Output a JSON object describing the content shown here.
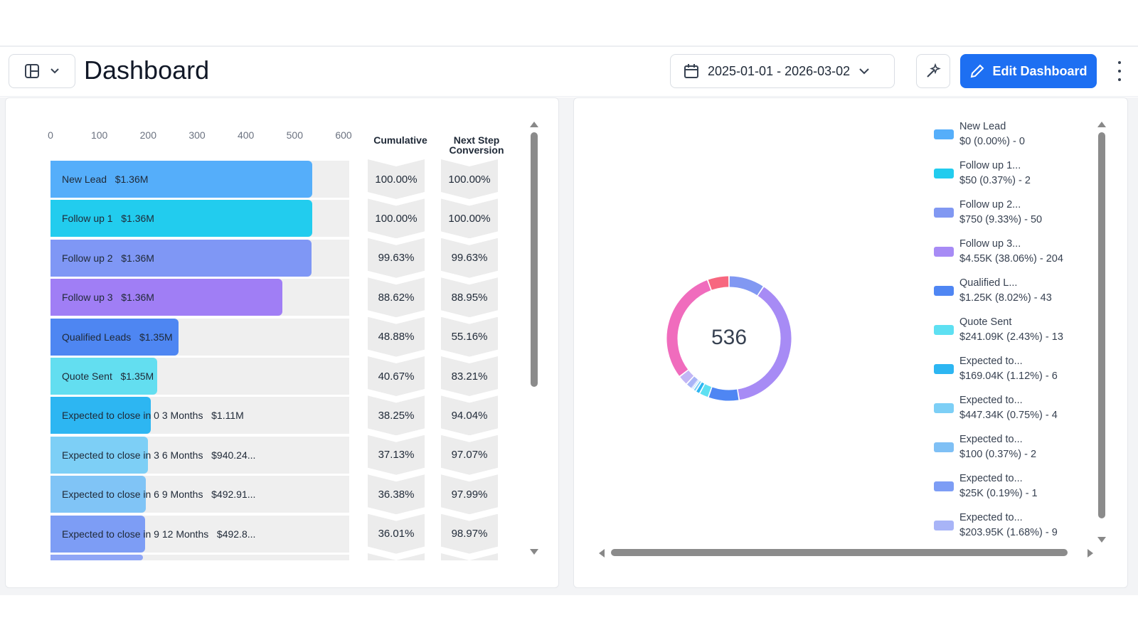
{
  "header": {
    "title": "Dashboard",
    "date_range": "2025-01-01 - 2026-03-02",
    "edit_label": "Edit Dashboard"
  },
  "funnel": {
    "type": "bar",
    "axis_ticks": [
      "0",
      "100",
      "200",
      "300",
      "400",
      "500",
      "600"
    ],
    "xlim": [
      0,
      600
    ],
    "columns": {
      "cumulative": "Cumulative",
      "next_step_line1": "Next Step",
      "next_step_line2": "Conversion"
    },
    "rows": [
      {
        "label": "New Lead",
        "amount": "$1.36M",
        "count": 536,
        "cumulative": "100.00%",
        "next": "100.00%",
        "color": "#55aefa"
      },
      {
        "label": "Follow up 1",
        "amount": "$1.36M",
        "count": 536,
        "cumulative": "100.00%",
        "next": "100.00%",
        "color": "#22ccee"
      },
      {
        "label": "Follow up 2",
        "amount": "$1.36M",
        "count": 534,
        "cumulative": "99.63%",
        "next": "99.63%",
        "color": "#7f97f5"
      },
      {
        "label": "Follow up 3",
        "amount": "$1.36M",
        "count": 475,
        "cumulative": "88.62%",
        "next": "88.95%",
        "color": "#a07ef5"
      },
      {
        "label": "Qualified Leads",
        "amount": "$1.35M",
        "count": 262,
        "cumulative": "48.88%",
        "next": "55.16%",
        "color": "#4e86f2"
      },
      {
        "label": "Quote Sent",
        "amount": "$1.35M",
        "count": 218,
        "cumulative": "40.67%",
        "next": "83.21%",
        "color": "#63def0"
      },
      {
        "label": "Expected to close in 0 3 Months",
        "amount": "$1.11M",
        "count": 205,
        "cumulative": "38.25%",
        "next": "94.04%",
        "color": "#2db6f2"
      },
      {
        "label": "Expected to close in 3 6 Months",
        "amount": "$940.24...",
        "count": 199,
        "cumulative": "37.13%",
        "next": "97.07%",
        "color": "#7dcff6"
      },
      {
        "label": "Expected to close in 6 9 Months",
        "amount": "$492.91...",
        "count": 195,
        "cumulative": "36.38%",
        "next": "97.99%",
        "color": "#80c4f6"
      },
      {
        "label": "Expected to close in 9 12 Months",
        "amount": "$492.8...",
        "count": 193,
        "cumulative": "36.01%",
        "next": "98.97%",
        "color": "#7d9df5"
      }
    ]
  },
  "donut": {
    "total": "536",
    "segments": [
      {
        "value": 50,
        "color": "#8198f2"
      },
      {
        "value": 204,
        "color": "#a78bf5"
      },
      {
        "value": 43,
        "color": "#4f86f3"
      },
      {
        "value": 13,
        "color": "#5ee0f2"
      },
      {
        "value": 6,
        "color": "#2db6f2"
      },
      {
        "value": 4,
        "color": "#7dcff6"
      },
      {
        "value": 2,
        "color": "#7fc0f5"
      },
      {
        "value": 1,
        "color": "#7d9df5"
      },
      {
        "value": 9,
        "color": "#a8b4f7"
      },
      {
        "value": 14,
        "color": "#c2b6f5"
      },
      {
        "value": 160,
        "color": "#f06cbd"
      },
      {
        "value": 30,
        "color": "#f7677f"
      }
    ]
  },
  "legend": [
    {
      "name": "New Lead",
      "detail": "$0 (0.00%) - 0",
      "color": "#55aefa"
    },
    {
      "name": "Follow up 1...",
      "detail": "$50 (0.37%) - 2",
      "color": "#22ccee"
    },
    {
      "name": "Follow up 2...",
      "detail": "$750 (9.33%) - 50",
      "color": "#8198f2"
    },
    {
      "name": "Follow up 3...",
      "detail": "$4.55K (38.06%) - 204",
      "color": "#a78bf5"
    },
    {
      "name": "Qualified L...",
      "detail": "$1.25K (8.02%) - 43",
      "color": "#4f86f3"
    },
    {
      "name": "Quote Sent",
      "detail": "$241.09K (2.43%) - 13",
      "color": "#5ee0f2"
    },
    {
      "name": "Expected to...",
      "detail": "$169.04K (1.12%) - 6",
      "color": "#2db6f2"
    },
    {
      "name": "Expected to...",
      "detail": "$447.34K (0.75%) - 4",
      "color": "#7dcff6"
    },
    {
      "name": "Expected to...",
      "detail": "$100 (0.37%) - 2",
      "color": "#7fc0f5"
    },
    {
      "name": "Expected to...",
      "detail": "$25K (0.19%) - 1",
      "color": "#7d9df5"
    },
    {
      "name": "Expected to...",
      "detail": "$203.95K (1.68%) - 9",
      "color": "#a8b4f7"
    }
  ]
}
